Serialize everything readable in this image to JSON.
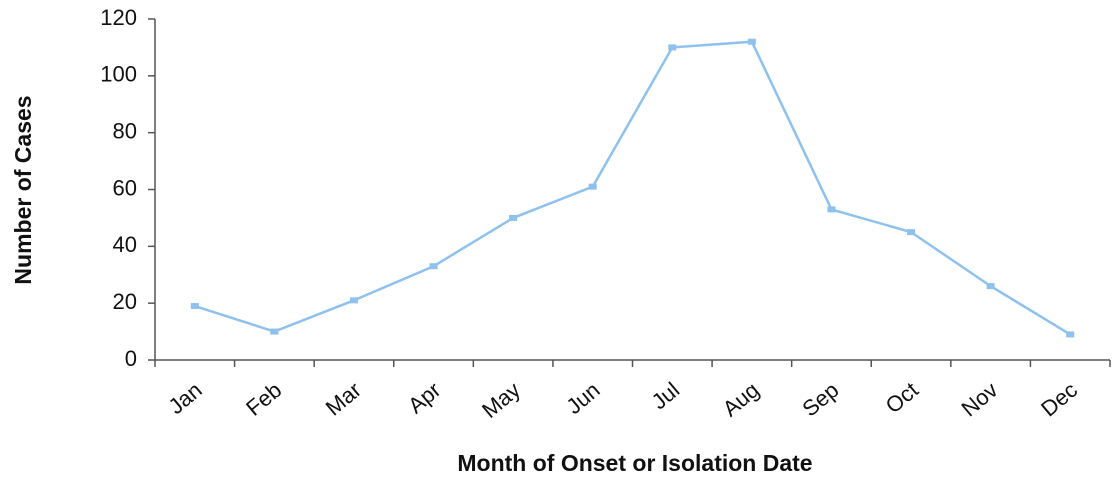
{
  "chart_data": {
    "type": "line",
    "x_label": "Month of Onset or Isolation Date",
    "y_label": "Number of Cases",
    "categories": [
      "Jan",
      "Feb",
      "Mar",
      "Apr",
      "May",
      "Jun",
      "Jul",
      "Aug",
      "Sep",
      "Oct",
      "Nov",
      "Dec"
    ],
    "series": [
      {
        "name": "Cases",
        "color": "#8fc1ef",
        "values": [
          19,
          10,
          21,
          33,
          50,
          61,
          110,
          112,
          53,
          45,
          26,
          9
        ]
      }
    ],
    "ylim": [
      0,
      120
    ],
    "yticks": [
      0,
      20,
      40,
      60,
      80,
      100,
      120
    ],
    "grid": false
  }
}
